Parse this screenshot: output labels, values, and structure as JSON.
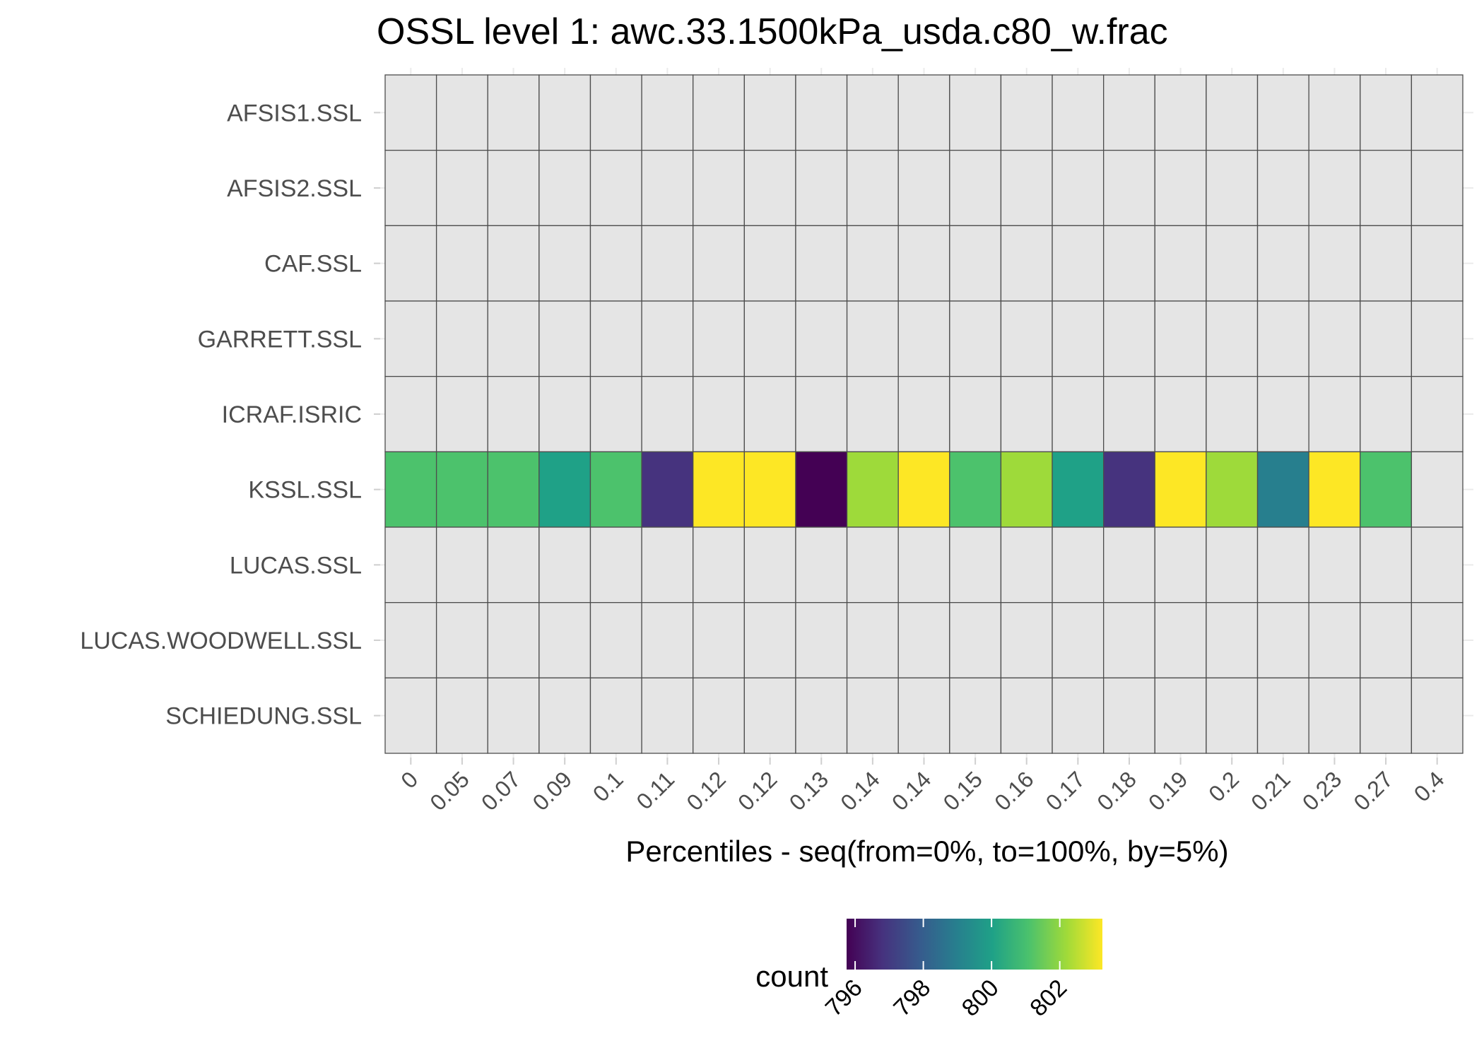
{
  "chart_data": {
    "type": "heatmap",
    "title": "OSSL level 1: awc.33.1500kPa_usda.c80_w.frac",
    "xlabel": "Percentiles - seq(from=0%, to=100%, by=5%)",
    "ylabel": "",
    "x_categories": [
      "0",
      "0.05",
      "0.07",
      "0.09",
      "0.1",
      "0.11",
      "0.12",
      "0.12",
      "0.13",
      "0.14",
      "0.14",
      "0.15",
      "0.16",
      "0.17",
      "0.18",
      "0.19",
      "0.2",
      "0.21",
      "0.23",
      "0.27",
      "0.4"
    ],
    "y_categories": [
      "AFSIS1.SSL",
      "AFSIS2.SSL",
      "CAF.SSL",
      "GARRETT.SSL",
      "ICRAF.ISRIC",
      "KSSL.SSL",
      "LUCAS.SSL",
      "LUCAS.WOODWELL.SSL",
      "SCHIEDUNG.SSL"
    ],
    "rows": [
      {
        "name": "AFSIS1.SSL",
        "values": [
          null,
          null,
          null,
          null,
          null,
          null,
          null,
          null,
          null,
          null,
          null,
          null,
          null,
          null,
          null,
          null,
          null,
          null,
          null,
          null,
          null
        ]
      },
      {
        "name": "AFSIS2.SSL",
        "values": [
          null,
          null,
          null,
          null,
          null,
          null,
          null,
          null,
          null,
          null,
          null,
          null,
          null,
          null,
          null,
          null,
          null,
          null,
          null,
          null,
          null
        ]
      },
      {
        "name": "CAF.SSL",
        "values": [
          null,
          null,
          null,
          null,
          null,
          null,
          null,
          null,
          null,
          null,
          null,
          null,
          null,
          null,
          null,
          null,
          null,
          null,
          null,
          null,
          null
        ]
      },
      {
        "name": "GARRETT.SSL",
        "values": [
          null,
          null,
          null,
          null,
          null,
          null,
          null,
          null,
          null,
          null,
          null,
          null,
          null,
          null,
          null,
          null,
          null,
          null,
          null,
          null,
          null
        ]
      },
      {
        "name": "ICRAF.ISRIC",
        "values": [
          null,
          null,
          null,
          null,
          null,
          null,
          null,
          null,
          null,
          null,
          null,
          null,
          null,
          null,
          null,
          null,
          null,
          null,
          null,
          null,
          null
        ]
      },
      {
        "name": "KSSL.SSL",
        "values": [
          801,
          801,
          801,
          800,
          801,
          797,
          803,
          803,
          796,
          802,
          803,
          801,
          802,
          800,
          797,
          803,
          802,
          799,
          803,
          801,
          null
        ]
      },
      {
        "name": "LUCAS.SSL",
        "values": [
          null,
          null,
          null,
          null,
          null,
          null,
          null,
          null,
          null,
          null,
          null,
          null,
          null,
          null,
          null,
          null,
          null,
          null,
          null,
          null,
          null
        ]
      },
      {
        "name": "LUCAS.WOODWELL.SSL",
        "values": [
          null,
          null,
          null,
          null,
          null,
          null,
          null,
          null,
          null,
          null,
          null,
          null,
          null,
          null,
          null,
          null,
          null,
          null,
          null,
          null,
          null
        ]
      },
      {
        "name": "SCHIEDUNG.SSL",
        "values": [
          null,
          null,
          null,
          null,
          null,
          null,
          null,
          null,
          null,
          null,
          null,
          null,
          null,
          null,
          null,
          null,
          null,
          null,
          null,
          null,
          null
        ]
      }
    ],
    "missing_color": "#e5e5e5",
    "colorscale": "viridis",
    "color_range": [
      796,
      803
    ],
    "legend": {
      "title": "count",
      "ticks": [
        "796",
        "798",
        "800",
        "802"
      ],
      "tick_values": [
        796,
        798,
        800,
        802
      ],
      "placement": "bottom"
    },
    "grid": true
  }
}
